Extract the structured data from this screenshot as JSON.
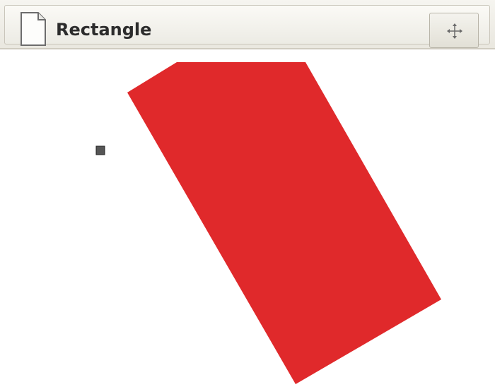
{
  "window": {
    "title": "Rectangle"
  },
  "icons": {
    "document": "document-icon",
    "move": "move-crosshair-icon"
  },
  "shape": {
    "fill": "#e0292b",
    "kind": "rotated-rectangle"
  },
  "handle": {
    "color": "#555555"
  }
}
